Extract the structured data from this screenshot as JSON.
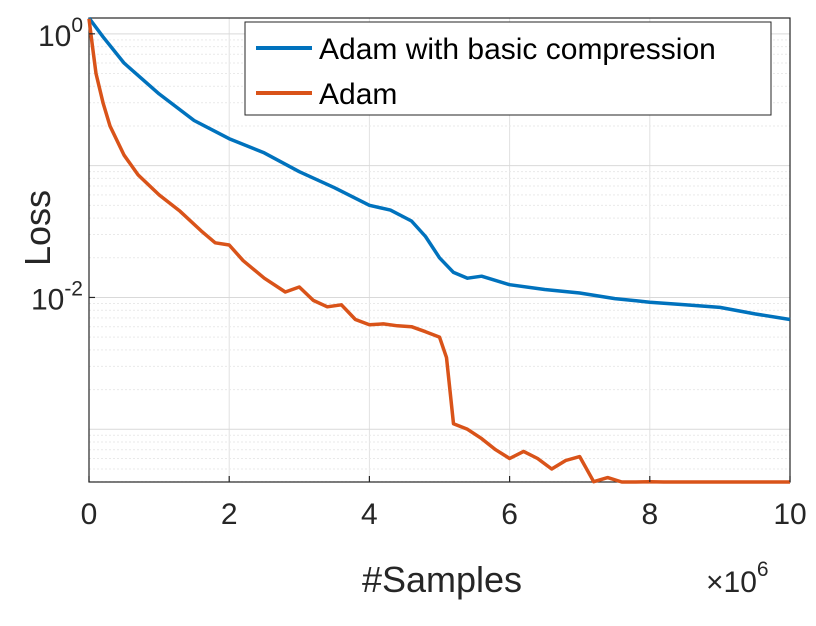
{
  "chart_data": {
    "type": "line",
    "xlabel": "#Samples",
    "ylabel": "Loss",
    "x_multiplier_label": "×10",
    "x_multiplier_exp": "6",
    "xlim": [
      0,
      10
    ],
    "ylim_log10": [
      -3.4,
      0.12
    ],
    "y_scale": "log",
    "grid": true,
    "legend_position": "top-right",
    "x_ticks": [
      "0",
      "2",
      "4",
      "6",
      "8",
      "10"
    ],
    "y_ticks": [
      {
        "value": 1,
        "base": "10",
        "exp": "0"
      },
      {
        "value": 0.01,
        "base": "10",
        "exp": "-2"
      }
    ],
    "series": [
      {
        "name": "Adam with basic compression",
        "color": "#0072BD",
        "x": [
          0,
          0.2,
          0.5,
          1.0,
          1.5,
          2.0,
          2.5,
          3.0,
          3.5,
          4.0,
          4.3,
          4.6,
          4.8,
          5.0,
          5.2,
          5.4,
          5.6,
          6.0,
          6.5,
          7.0,
          7.5,
          8.0,
          8.5,
          9.0,
          9.5,
          10.0
        ],
        "y": [
          1.35,
          0.95,
          0.6,
          0.35,
          0.22,
          0.16,
          0.125,
          0.09,
          0.068,
          0.05,
          0.046,
          0.038,
          0.029,
          0.02,
          0.0155,
          0.014,
          0.0145,
          0.0125,
          0.0115,
          0.0108,
          0.0098,
          0.0092,
          0.0088,
          0.0084,
          0.0075,
          0.0068
        ]
      },
      {
        "name": "Adam",
        "color": "#D95319",
        "x": [
          0,
          0.05,
          0.1,
          0.2,
          0.3,
          0.5,
          0.7,
          1.0,
          1.3,
          1.6,
          1.8,
          2.0,
          2.2,
          2.5,
          2.8,
          3.0,
          3.2,
          3.4,
          3.6,
          3.8,
          4.0,
          4.2,
          4.4,
          4.6,
          4.8,
          5.0,
          5.1,
          5.2,
          5.4,
          5.6,
          5.8,
          6.0,
          6.2,
          6.4,
          6.6,
          6.8,
          7.0,
          7.2,
          7.4,
          7.6,
          7.8,
          8.0,
          8.2,
          8.4,
          8.6,
          8.8,
          9.0,
          9.2,
          9.4,
          9.6,
          9.8,
          10.0
        ],
        "y": [
          1.3,
          0.8,
          0.5,
          0.3,
          0.2,
          0.12,
          0.085,
          0.06,
          0.045,
          0.032,
          0.026,
          0.025,
          0.019,
          0.014,
          0.011,
          0.012,
          0.0095,
          0.0085,
          0.0088,
          0.0068,
          0.0062,
          0.0063,
          0.0061,
          0.006,
          0.0055,
          0.005,
          0.0035,
          0.0011,
          0.001,
          0.00085,
          0.0007,
          0.0006,
          0.00068,
          0.0006,
          0.0005,
          0.00058,
          0.00062,
          0.0004,
          0.00043,
          0.00038,
          0.00034,
          0.0004,
          0.0003,
          0.00028,
          0.00031,
          0.0003,
          0.00033,
          0.0003,
          0.00032,
          0.0003,
          0.00033,
          0.00032
        ]
      }
    ]
  }
}
